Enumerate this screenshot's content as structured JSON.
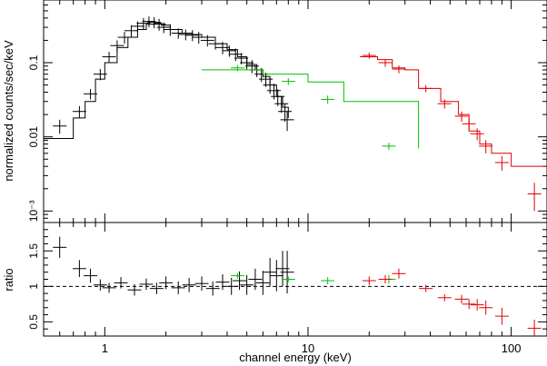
{
  "chart_data": [
    {
      "type": "scatter",
      "panel": "spectrum",
      "xlabel": "channel energy (keV)",
      "ylabel": "normalized counts/sec/keV",
      "xscale": "log",
      "yscale": "log",
      "xlim": [
        0.5,
        150
      ],
      "ylim": [
        0.0007,
        0.7
      ],
      "x_ticks": [
        1,
        10,
        100
      ],
      "x_tick_labels": [
        "1",
        "10",
        "100"
      ],
      "y_ticks": [
        0.001,
        0.01,
        0.1
      ],
      "y_tick_labels": [
        "10⁻³",
        "0.01",
        "0.1"
      ],
      "grid": false,
      "colors": {
        "soft": "#000000",
        "mid": "#00c000",
        "hard": "#e00000"
      },
      "series": [
        {
          "color": "#000000",
          "style": "model+errorbars",
          "model_steps": [
            [
              0.5,
              0.0095
            ],
            [
              0.7,
              0.018
            ],
            [
              0.8,
              0.03
            ],
            [
              0.9,
              0.06
            ],
            [
              1.0,
              0.1
            ],
            [
              1.15,
              0.16
            ],
            [
              1.3,
              0.22
            ],
            [
              1.45,
              0.28
            ],
            [
              1.6,
              0.33
            ],
            [
              1.75,
              0.34
            ],
            [
              1.9,
              0.32
            ],
            [
              2.1,
              0.28
            ],
            [
              2.4,
              0.25
            ],
            [
              2.7,
              0.24
            ],
            [
              3.0,
              0.22
            ],
            [
              3.5,
              0.18
            ],
            [
              4.0,
              0.15
            ],
            [
              4.5,
              0.12
            ],
            [
              5.0,
              0.095
            ],
            [
              5.5,
              0.08
            ],
            [
              6.0,
              0.065
            ],
            [
              6.5,
              0.05
            ],
            [
              7.0,
              0.035
            ],
            [
              7.5,
              0.025
            ],
            [
              8.0,
              0.018
            ]
          ],
          "points": [
            {
              "x": 0.6,
              "y": 0.014,
              "dy": 0.003
            },
            {
              "x": 0.75,
              "y": 0.022,
              "dy": 0.004
            },
            {
              "x": 0.85,
              "y": 0.038,
              "dy": 0.006
            },
            {
              "x": 0.95,
              "y": 0.07,
              "dy": 0.012
            },
            {
              "x": 1.05,
              "y": 0.12,
              "dy": 0.02
            },
            {
              "x": 1.15,
              "y": 0.17,
              "dy": 0.03
            },
            {
              "x": 1.25,
              "y": 0.22,
              "dy": 0.04
            },
            {
              "x": 1.35,
              "y": 0.27,
              "dy": 0.05
            },
            {
              "x": 1.45,
              "y": 0.31,
              "dy": 0.05
            },
            {
              "x": 1.55,
              "y": 0.34,
              "dy": 0.06
            },
            {
              "x": 1.65,
              "y": 0.36,
              "dy": 0.06
            },
            {
              "x": 1.75,
              "y": 0.35,
              "dy": 0.06
            },
            {
              "x": 1.85,
              "y": 0.33,
              "dy": 0.06
            },
            {
              "x": 1.95,
              "y": 0.3,
              "dy": 0.05
            },
            {
              "x": 2.1,
              "y": 0.28,
              "dy": 0.05
            },
            {
              "x": 2.3,
              "y": 0.25,
              "dy": 0.04
            },
            {
              "x": 2.5,
              "y": 0.24,
              "dy": 0.04
            },
            {
              "x": 2.7,
              "y": 0.235,
              "dy": 0.04
            },
            {
              "x": 2.9,
              "y": 0.22,
              "dy": 0.04
            },
            {
              "x": 3.2,
              "y": 0.2,
              "dy": 0.035
            },
            {
              "x": 3.5,
              "y": 0.18,
              "dy": 0.03
            },
            {
              "x": 3.8,
              "y": 0.16,
              "dy": 0.03
            },
            {
              "x": 4.1,
              "y": 0.145,
              "dy": 0.025
            },
            {
              "x": 4.4,
              "y": 0.13,
              "dy": 0.025
            },
            {
              "x": 4.7,
              "y": 0.115,
              "dy": 0.02
            },
            {
              "x": 5.0,
              "y": 0.1,
              "dy": 0.02
            },
            {
              "x": 5.3,
              "y": 0.09,
              "dy": 0.018
            },
            {
              "x": 5.6,
              "y": 0.08,
              "dy": 0.016
            },
            {
              "x": 5.9,
              "y": 0.07,
              "dy": 0.015
            },
            {
              "x": 6.2,
              "y": 0.06,
              "dy": 0.013
            },
            {
              "x": 6.5,
              "y": 0.05,
              "dy": 0.012
            },
            {
              "x": 6.8,
              "y": 0.042,
              "dy": 0.01
            },
            {
              "x": 7.1,
              "y": 0.035,
              "dy": 0.009
            },
            {
              "x": 7.4,
              "y": 0.028,
              "dy": 0.007
            },
            {
              "x": 7.7,
              "y": 0.022,
              "dy": 0.006
            },
            {
              "x": 7.9,
              "y": 0.017,
              "dy": 0.005
            }
          ]
        },
        {
          "color": "#00c000",
          "style": "model+errorbars",
          "model_steps": [
            [
              3.0,
              0.08
            ],
            [
              6.0,
              0.07
            ],
            [
              10.0,
              0.055
            ],
            [
              15.0,
              0.03
            ],
            [
              35.0,
              0.007
            ]
          ],
          "points": [
            {
              "x": 4.5,
              "y": 0.085,
              "dy": 0.008
            },
            {
              "x": 8.0,
              "y": 0.056,
              "dy": 0.006
            },
            {
              "x": 12.5,
              "y": 0.032,
              "dy": 0.004
            },
            {
              "x": 25.0,
              "y": 0.0075,
              "dy": 0.0008
            }
          ]
        },
        {
          "color": "#e00000",
          "style": "model+errorbars",
          "model_steps": [
            [
              18.0,
              0.12
            ],
            [
              22.0,
              0.11
            ],
            [
              26.0,
              0.085
            ],
            [
              30.0,
              0.08
            ],
            [
              35.0,
              0.045
            ],
            [
              40.0,
              0.045
            ],
            [
              45.0,
              0.03
            ],
            [
              55.0,
              0.02
            ],
            [
              62.0,
              0.012
            ],
            [
              70.0,
              0.008
            ],
            [
              80.0,
              0.006
            ],
            [
              100.0,
              0.004
            ],
            [
              150.0,
              0.004
            ]
          ],
          "points": [
            {
              "x": 20.0,
              "y": 0.125,
              "dy": 0.012
            },
            {
              "x": 24.0,
              "y": 0.1,
              "dy": 0.012
            },
            {
              "x": 28.0,
              "y": 0.082,
              "dy": 0.01
            },
            {
              "x": 38.0,
              "y": 0.045,
              "dy": 0.005
            },
            {
              "x": 47.0,
              "y": 0.028,
              "dy": 0.004
            },
            {
              "x": 57.0,
              "y": 0.019,
              "dy": 0.003
            },
            {
              "x": 62.0,
              "y": 0.015,
              "dy": 0.003
            },
            {
              "x": 68.0,
              "y": 0.011,
              "dy": 0.002
            },
            {
              "x": 75.0,
              "y": 0.0075,
              "dy": 0.0015
            },
            {
              "x": 90.0,
              "y": 0.0045,
              "dy": 0.001
            },
            {
              "x": 130.0,
              "y": 0.0017,
              "dy": 0.0007
            }
          ]
        }
      ]
    },
    {
      "type": "scatter",
      "panel": "ratio",
      "xlabel": "channel energy (keV)",
      "ylabel": "ratio",
      "xscale": "log",
      "xlim": [
        0.5,
        150
      ],
      "ylim": [
        0.3,
        1.9
      ],
      "x_ticks": [
        1,
        10,
        100
      ],
      "x_tick_labels": [
        "1",
        "10",
        "100"
      ],
      "y_ticks": [
        0.5,
        1,
        1.5
      ],
      "y_tick_labels": [
        "0.5",
        "1",
        "1.5"
      ],
      "reference_line": 1,
      "grid": false,
      "series": [
        {
          "color": "#000000",
          "points": [
            {
              "x": 0.6,
              "y": 1.55,
              "dy": 0.15
            },
            {
              "x": 0.75,
              "y": 1.25,
              "dy": 0.12
            },
            {
              "x": 0.85,
              "y": 1.15,
              "dy": 0.1
            },
            {
              "x": 0.95,
              "y": 1.02,
              "dy": 0.08
            },
            {
              "x": 1.05,
              "y": 0.98,
              "dy": 0.07
            },
            {
              "x": 1.2,
              "y": 1.05,
              "dy": 0.08
            },
            {
              "x": 1.4,
              "y": 0.95,
              "dy": 0.08
            },
            {
              "x": 1.6,
              "y": 1.03,
              "dy": 0.08
            },
            {
              "x": 1.8,
              "y": 0.97,
              "dy": 0.08
            },
            {
              "x": 2.0,
              "y": 1.05,
              "dy": 0.09
            },
            {
              "x": 2.3,
              "y": 0.98,
              "dy": 0.09
            },
            {
              "x": 2.6,
              "y": 1.02,
              "dy": 0.1
            },
            {
              "x": 3.0,
              "y": 1.04,
              "dy": 0.1
            },
            {
              "x": 3.4,
              "y": 0.97,
              "dy": 0.1
            },
            {
              "x": 3.8,
              "y": 1.06,
              "dy": 0.11
            },
            {
              "x": 4.2,
              "y": 1.0,
              "dy": 0.12
            },
            {
              "x": 4.6,
              "y": 1.08,
              "dy": 0.13
            },
            {
              "x": 5.0,
              "y": 1.02,
              "dy": 0.14
            },
            {
              "x": 5.5,
              "y": 1.1,
              "dy": 0.15
            },
            {
              "x": 6.0,
              "y": 1.05,
              "dy": 0.17
            },
            {
              "x": 6.5,
              "y": 1.2,
              "dy": 0.2
            },
            {
              "x": 7.0,
              "y": 1.15,
              "dy": 0.22
            },
            {
              "x": 7.5,
              "y": 1.25,
              "dy": 0.25
            },
            {
              "x": 7.9,
              "y": 1.2,
              "dy": 0.3
            }
          ]
        },
        {
          "color": "#00c000",
          "points": [
            {
              "x": 4.5,
              "y": 1.15,
              "dy": 0.04
            },
            {
              "x": 8.0,
              "y": 1.1,
              "dy": 0.04
            },
            {
              "x": 12.5,
              "y": 1.08,
              "dy": 0.05
            },
            {
              "x": 25.0,
              "y": 1.1,
              "dy": 0.06
            }
          ]
        },
        {
          "color": "#e00000",
          "points": [
            {
              "x": 20.0,
              "y": 1.08,
              "dy": 0.06
            },
            {
              "x": 24.0,
              "y": 1.1,
              "dy": 0.06
            },
            {
              "x": 28.0,
              "y": 1.18,
              "dy": 0.07
            },
            {
              "x": 38.0,
              "y": 0.97,
              "dy": 0.05
            },
            {
              "x": 47.0,
              "y": 0.84,
              "dy": 0.05
            },
            {
              "x": 57.0,
              "y": 0.82,
              "dy": 0.06
            },
            {
              "x": 62.0,
              "y": 0.75,
              "dy": 0.07
            },
            {
              "x": 68.0,
              "y": 0.74,
              "dy": 0.08
            },
            {
              "x": 75.0,
              "y": 0.7,
              "dy": 0.1
            },
            {
              "x": 90.0,
              "y": 0.58,
              "dy": 0.12
            },
            {
              "x": 130.0,
              "y": 0.41,
              "dy": 0.12
            }
          ]
        }
      ]
    }
  ]
}
